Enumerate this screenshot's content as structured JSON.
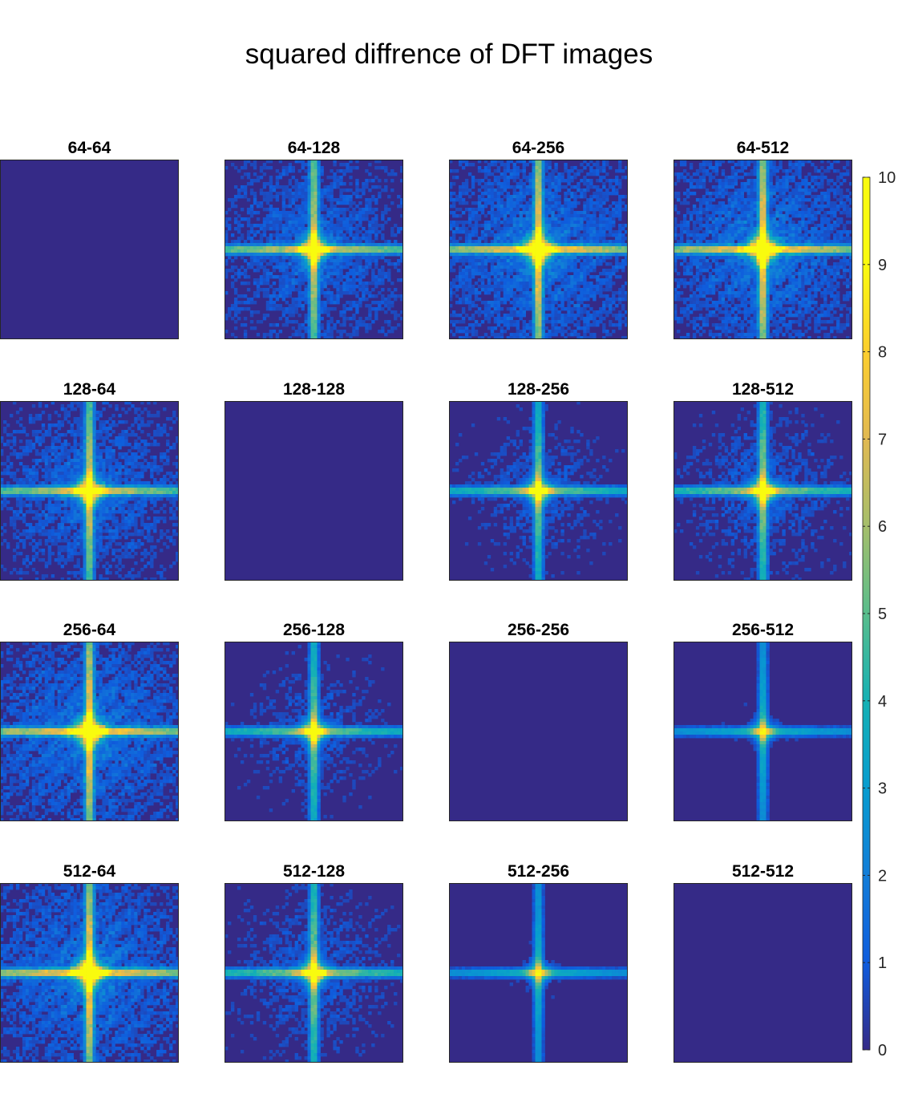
{
  "figure": {
    "title": "squared diffrence of DFT images"
  },
  "chart_data": {
    "type": "heatmap",
    "title": "squared diffrence of DFT images",
    "grid_rows": 4,
    "grid_cols": 4,
    "colormap": "parula",
    "clim": [
      0,
      10
    ],
    "colorbar": {
      "placement": "right",
      "ticks": [
        0,
        1,
        2,
        3,
        4,
        5,
        6,
        7,
        8,
        9,
        10
      ]
    },
    "panels": [
      {
        "title": "64-64",
        "pattern": "zero"
      },
      {
        "title": "64-128",
        "pattern": "cross",
        "intensity": 0.85,
        "spread": 0.9
      },
      {
        "title": "64-256",
        "pattern": "cross",
        "intensity": 0.95,
        "spread": 1.0
      },
      {
        "title": "64-512",
        "pattern": "cross",
        "intensity": 0.95,
        "spread": 1.0
      },
      {
        "title": "128-64",
        "pattern": "cross",
        "intensity": 0.85,
        "spread": 0.9
      },
      {
        "title": "128-128",
        "pattern": "zero"
      },
      {
        "title": "128-256",
        "pattern": "cross",
        "intensity": 0.7,
        "spread": 0.7
      },
      {
        "title": "128-512",
        "pattern": "cross",
        "intensity": 0.75,
        "spread": 0.75
      },
      {
        "title": "256-64",
        "pattern": "cross",
        "intensity": 0.95,
        "spread": 1.0
      },
      {
        "title": "256-128",
        "pattern": "cross",
        "intensity": 0.7,
        "spread": 0.7
      },
      {
        "title": "256-256",
        "pattern": "zero"
      },
      {
        "title": "256-512",
        "pattern": "cross",
        "intensity": 0.55,
        "spread": 0.45
      },
      {
        "title": "512-64",
        "pattern": "cross",
        "intensity": 0.95,
        "spread": 1.0
      },
      {
        "title": "512-128",
        "pattern": "cross",
        "intensity": 0.75,
        "spread": 0.75
      },
      {
        "title": "512-256",
        "pattern": "cross",
        "intensity": 0.55,
        "spread": 0.45
      },
      {
        "title": "512-512",
        "pattern": "zero"
      }
    ]
  }
}
